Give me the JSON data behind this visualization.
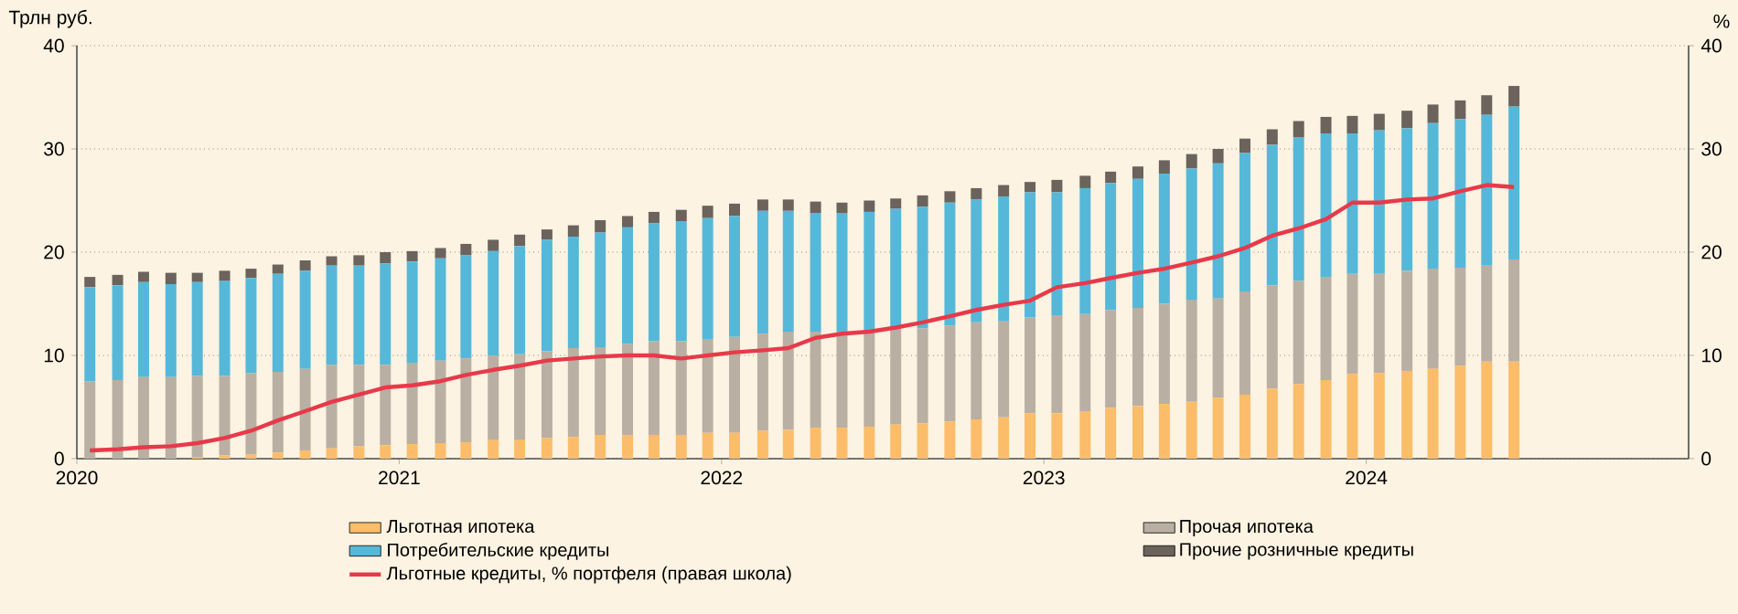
{
  "chart_data": {
    "type": "bar",
    "stacked": true,
    "ylabel": "Трлн руб.",
    "y2label": "%",
    "x": [
      "2020-01-16",
      "2020-02-16",
      "2020-03-16",
      "2020-04-16",
      "2020-05-16",
      "2020-06-16",
      "2020-07-16",
      "2020-08-16",
      "2020-09-16",
      "2020-10-16",
      "2020-11-16",
      "2020-12-16",
      "2021-01-16",
      "2021-02-16",
      "2021-03-16",
      "2021-04-16",
      "2021-05-16",
      "2021-06-16",
      "2021-07-16",
      "2021-08-16",
      "2021-09-16",
      "2021-10-16",
      "2021-11-16",
      "2021-12-16",
      "2022-01-16",
      "2022-02-16",
      "2022-03-16",
      "2022-04-16",
      "2022-05-16",
      "2022-06-16",
      "2022-07-16",
      "2022-08-16",
      "2022-09-16",
      "2022-10-16",
      "2022-11-16",
      "2022-12-16",
      "2023-01-16",
      "2023-02-16",
      "2023-03-16",
      "2023-04-16",
      "2023-05-16",
      "2023-06-16",
      "2023-07-16",
      "2023-08-16",
      "2023-09-16",
      "2023-10-16",
      "2023-11-16",
      "2023-12-16",
      "2024-01-16",
      "2024-02-16",
      "2024-03-16",
      "2024-04-16",
      "2024-05-16",
      "2024-06-16"
    ],
    "xlim": [
      "2020",
      "2025"
    ],
    "xticks": [
      "2020",
      "2021",
      "2022",
      "2023",
      "2024"
    ],
    "ylim": [
      0,
      40
    ],
    "yticks": [
      0,
      10,
      20,
      30,
      40
    ],
    "y2lim": [
      0,
      40
    ],
    "y2ticks": [
      0,
      10,
      20,
      30,
      40
    ],
    "grid": "y",
    "legend": "bottom",
    "series": [
      {
        "name": "Льготная ипотека",
        "color": "#fbbd69",
        "values": [
          0.0,
          0.0,
          0.0,
          0.0,
          0.1,
          0.3,
          0.4,
          0.6,
          0.8,
          1.0,
          1.2,
          1.3,
          1.4,
          1.5,
          1.6,
          1.8,
          1.8,
          2.0,
          2.1,
          2.3,
          2.3,
          2.3,
          2.3,
          2.5,
          2.5,
          2.7,
          2.8,
          3.0,
          3.0,
          3.1,
          3.3,
          3.4,
          3.6,
          3.8,
          4.0,
          4.4,
          4.4,
          4.6,
          4.9,
          5.1,
          5.3,
          5.5,
          5.9,
          6.2,
          6.8,
          7.2,
          7.6,
          8.2,
          8.3,
          8.5,
          8.7,
          9.0,
          9.4,
          9.4
        ]
      },
      {
        "name": "Прочая ипотека",
        "color": "#b9afa3",
        "values": [
          7.5,
          7.6,
          7.9,
          7.9,
          7.9,
          7.7,
          7.9,
          7.8,
          7.9,
          8.1,
          7.9,
          7.8,
          7.9,
          8.0,
          8.1,
          8.2,
          8.3,
          8.4,
          8.6,
          8.5,
          8.8,
          9.1,
          9.1,
          9.1,
          9.3,
          9.4,
          9.5,
          9.3,
          9.3,
          9.3,
          9.3,
          9.2,
          9.3,
          9.4,
          9.3,
          9.3,
          9.5,
          9.4,
          9.5,
          9.5,
          9.7,
          9.9,
          9.6,
          10.0,
          10.0,
          10.0,
          10.0,
          9.7,
          9.6,
          9.7,
          9.7,
          9.5,
          9.3,
          9.9
        ]
      },
      {
        "name": "Потребительские кредиты",
        "color": "#56b8d9",
        "values": [
          9.1,
          9.2,
          9.2,
          9.0,
          9.1,
          9.2,
          9.2,
          9.5,
          9.5,
          9.6,
          9.6,
          9.8,
          9.8,
          9.9,
          10.0,
          10.1,
          10.5,
          10.8,
          10.8,
          11.1,
          11.3,
          11.4,
          11.6,
          11.7,
          11.7,
          11.9,
          11.7,
          11.5,
          11.5,
          11.5,
          11.6,
          11.8,
          11.9,
          11.9,
          12.1,
          12.1,
          11.9,
          12.2,
          12.3,
          12.5,
          12.6,
          12.7,
          13.1,
          13.4,
          13.6,
          13.9,
          13.9,
          13.6,
          13.9,
          13.8,
          14.1,
          14.4,
          14.6,
          14.8
        ]
      },
      {
        "name": "Прочие розничные кредиты",
        "color": "#6b635c",
        "values": [
          1.0,
          1.0,
          1.0,
          1.1,
          0.9,
          1.0,
          0.9,
          0.9,
          1.0,
          0.9,
          1.0,
          1.1,
          1.0,
          1.0,
          1.1,
          1.1,
          1.1,
          1.0,
          1.1,
          1.2,
          1.1,
          1.1,
          1.1,
          1.2,
          1.2,
          1.1,
          1.1,
          1.1,
          1.0,
          1.1,
          1.0,
          1.1,
          1.1,
          1.1,
          1.1,
          1.0,
          1.2,
          1.2,
          1.1,
          1.2,
          1.3,
          1.4,
          1.4,
          1.4,
          1.5,
          1.6,
          1.6,
          1.7,
          1.6,
          1.7,
          1.8,
          1.8,
          1.9,
          2.0
        ]
      },
      {
        "name": "Льготные кредиты, % портфеля (правая школа)",
        "type": "line",
        "axis": "y2",
        "color": "#e8394a",
        "values": [
          0.8,
          0.9,
          1.1,
          1.2,
          1.5,
          2.0,
          2.7,
          3.7,
          4.6,
          5.5,
          6.2,
          6.9,
          7.1,
          7.5,
          8.1,
          8.6,
          9.0,
          9.5,
          9.7,
          9.9,
          10.0,
          10.0,
          9.7,
          10.0,
          10.3,
          10.5,
          10.7,
          11.7,
          12.1,
          12.3,
          12.7,
          13.2,
          13.8,
          14.4,
          14.9,
          15.3,
          16.6,
          17.0,
          17.5,
          18.0,
          18.4,
          19.0,
          19.6,
          20.4,
          21.6,
          22.3,
          23.2,
          24.8,
          24.8,
          25.1,
          25.2,
          25.9,
          26.5,
          26.3
        ]
      }
    ]
  }
}
